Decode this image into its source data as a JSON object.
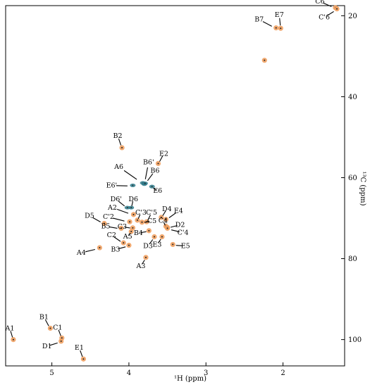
{
  "chart_data": {
    "type": "scatter",
    "title": "",
    "xlabel": "¹H (ppm)",
    "ylabel": "¹³C (ppm)",
    "xlim": [
      5.6,
      1.2
    ],
    "ylim": [
      17.5,
      106.5
    ],
    "x_reversed": true,
    "y_reversed": true,
    "grid": false,
    "x_ticks": [
      "5",
      "4",
      "3",
      "2"
    ],
    "x_tick_values": [
      5,
      4,
      3,
      2
    ],
    "y_ticks": [
      "20",
      "40",
      "60",
      "80",
      "100"
    ],
    "y_tick_values": [
      20,
      40,
      60,
      80,
      100
    ],
    "colors": {
      "peak": "#f0a060",
      "peak_dark": "#222222",
      "teal": "#2e7a8a",
      "axis": "#000000"
    },
    "points": [
      {
        "label": "C6",
        "x": 1.32,
        "y": 18.0,
        "color": "orange"
      },
      {
        "label": "C'6",
        "x": 1.3,
        "y": 18.3,
        "color": "orange"
      },
      {
        "label": "B7",
        "x": 2.09,
        "y": 23.0,
        "color": "orange"
      },
      {
        "label": "E7",
        "x": 2.03,
        "y": 23.1,
        "color": "orange"
      },
      {
        "label": "",
        "x": 2.24,
        "y": 31.0,
        "color": "orange"
      },
      {
        "label": "B2",
        "x": 4.09,
        "y": 52.6,
        "color": "orange"
      },
      {
        "label": "E2",
        "x": 3.62,
        "y": 56.5,
        "color": "orange"
      },
      {
        "label": "A6",
        "x": 3.82,
        "y": 61.3,
        "color": "teal"
      },
      {
        "label": "B6'",
        "x": 3.8,
        "y": 61.6,
        "color": "teal"
      },
      {
        "label": "B6",
        "x": 3.79,
        "y": 61.4,
        "color": "teal"
      },
      {
        "label": "E6'",
        "x": 3.95,
        "y": 61.9,
        "color": "teal"
      },
      {
        "label": "E6",
        "x": 3.7,
        "y": 62.2,
        "color": "teal"
      },
      {
        "label": "D6'",
        "x": 4.02,
        "y": 67.4,
        "color": "teal"
      },
      {
        "label": "D6",
        "x": 3.97,
        "y": 67.4,
        "color": "teal"
      },
      {
        "label": "A2",
        "x": 3.94,
        "y": 69.1,
        "color": "orange"
      },
      {
        "label": "C'3",
        "x": 3.89,
        "y": 70.5,
        "color": "orange"
      },
      {
        "label": "C'2",
        "x": 3.99,
        "y": 70.9,
        "color": "orange"
      },
      {
        "label": "C5",
        "x": 3.83,
        "y": 71.0,
        "color": "orange"
      },
      {
        "label": "C'5",
        "x": 3.77,
        "y": 70.9,
        "color": "orange"
      },
      {
        "label": "D4",
        "x": 3.58,
        "y": 69.8,
        "color": "orange"
      },
      {
        "label": "E4",
        "x": 3.52,
        "y": 70.3,
        "color": "orange"
      },
      {
        "label": "C4",
        "x": 3.52,
        "y": 72.0,
        "color": "orange"
      },
      {
        "label": "D2",
        "x": 3.5,
        "y": 72.3,
        "color": "orange"
      },
      {
        "label": "C'4",
        "x": 3.5,
        "y": 72.5,
        "color": "orange"
      },
      {
        "label": "D5",
        "x": 4.32,
        "y": 71.3,
        "color": "orange"
      },
      {
        "label": "C3",
        "x": 3.95,
        "y": 72.4,
        "color": "orange"
      },
      {
        "label": "B5",
        "x": 4.1,
        "y": 72.5,
        "color": "orange"
      },
      {
        "label": "B4",
        "x": 3.74,
        "y": 73.1,
        "color": "orange"
      },
      {
        "label": "A5",
        "x": 3.97,
        "y": 73.3,
        "color": "orange"
      },
      {
        "label": "C2",
        "x": 4.07,
        "y": 76.1,
        "color": "orange"
      },
      {
        "label": "D3",
        "x": 3.67,
        "y": 74.6,
        "color": "orange"
      },
      {
        "label": "E3",
        "x": 3.57,
        "y": 74.6,
        "color": "orange"
      },
      {
        "label": "A4",
        "x": 4.38,
        "y": 77.3,
        "color": "orange"
      },
      {
        "label": "B3",
        "x": 4.0,
        "y": 76.7,
        "color": "orange"
      },
      {
        "label": "E5",
        "x": 3.43,
        "y": 76.5,
        "color": "orange"
      },
      {
        "label": "A3",
        "x": 3.78,
        "y": 79.7,
        "color": "orange"
      },
      {
        "label": "B1",
        "x": 5.02,
        "y": 97.2,
        "color": "orange"
      },
      {
        "label": "C1",
        "x": 4.87,
        "y": 99.6,
        "color": "orange"
      },
      {
        "label": "A1",
        "x": 5.5,
        "y": 100.0,
        "color": "orange"
      },
      {
        "label": "D1",
        "x": 4.88,
        "y": 100.4,
        "color": "orange"
      },
      {
        "label": "E1",
        "x": 4.59,
        "y": 104.8,
        "color": "orange"
      }
    ]
  }
}
